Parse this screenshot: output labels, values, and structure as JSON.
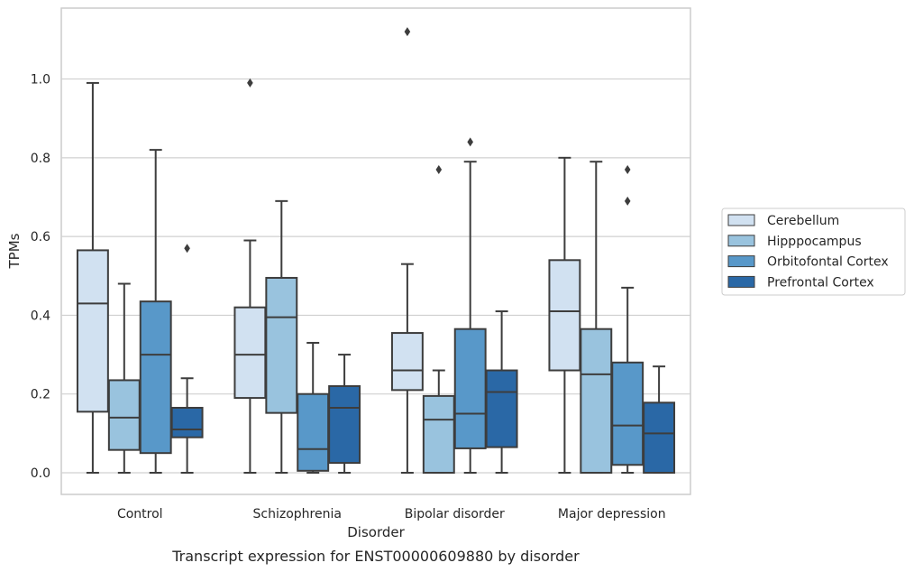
{
  "chart_data": {
    "type": "box",
    "caption": "Transcript expression for ENST00000609880 by disorder",
    "xlabel": "Disorder",
    "ylabel": "TPMs",
    "ylim": [
      -0.055,
      1.18
    ],
    "yticks": [
      0.0,
      0.2,
      0.4,
      0.6,
      0.8,
      1.0
    ],
    "ytick_labels": [
      "0.0",
      "0.2",
      "0.4",
      "0.6",
      "0.8",
      "1.0"
    ],
    "grid": "horizontal",
    "legend_position": "right",
    "categories": [
      "Control",
      "Schizophrenia",
      "Bipolar disorder",
      "Major depression"
    ],
    "series": [
      {
        "name": "Cerebellum",
        "color": "#d1e1f1",
        "boxes": [
          {
            "whisker_low": 0.0,
            "q1": 0.155,
            "median": 0.43,
            "q3": 0.565,
            "whisker_high": 0.99,
            "outliers": []
          },
          {
            "whisker_low": 0.0,
            "q1": 0.19,
            "median": 0.3,
            "q3": 0.42,
            "whisker_high": 0.59,
            "outliers": [
              0.99
            ]
          },
          {
            "whisker_low": 0.0,
            "q1": 0.21,
            "median": 0.26,
            "q3": 0.355,
            "whisker_high": 0.53,
            "outliers": [
              1.12
            ]
          },
          {
            "whisker_low": 0.0,
            "q1": 0.26,
            "median": 0.41,
            "q3": 0.54,
            "whisker_high": 0.8,
            "outliers": []
          }
        ]
      },
      {
        "name": "Hipppocampus",
        "color": "#99c3de",
        "boxes": [
          {
            "whisker_low": 0.0,
            "q1": 0.058,
            "median": 0.14,
            "q3": 0.235,
            "whisker_high": 0.48,
            "outliers": []
          },
          {
            "whisker_low": 0.0,
            "q1": 0.152,
            "median": 0.395,
            "q3": 0.495,
            "whisker_high": 0.69,
            "outliers": []
          },
          {
            "whisker_low": 0.0,
            "q1": 0.0,
            "median": 0.135,
            "q3": 0.195,
            "whisker_high": 0.26,
            "outliers": [
              0.77
            ]
          },
          {
            "whisker_low": 0.0,
            "q1": 0.0,
            "median": 0.25,
            "q3": 0.365,
            "whisker_high": 0.79,
            "outliers": []
          }
        ]
      },
      {
        "name": "Orbitofontal Cortex",
        "color": "#5898c9",
        "boxes": [
          {
            "whisker_low": 0.0,
            "q1": 0.05,
            "median": 0.3,
            "q3": 0.435,
            "whisker_high": 0.82,
            "outliers": []
          },
          {
            "whisker_low": 0.0,
            "q1": 0.005,
            "median": 0.06,
            "q3": 0.2,
            "whisker_high": 0.33,
            "outliers": []
          },
          {
            "whisker_low": 0.0,
            "q1": 0.062,
            "median": 0.15,
            "q3": 0.365,
            "whisker_high": 0.79,
            "outliers": [
              0.84
            ]
          },
          {
            "whisker_low": 0.0,
            "q1": 0.02,
            "median": 0.12,
            "q3": 0.28,
            "whisker_high": 0.47,
            "outliers": [
              0.69,
              0.77
            ]
          }
        ]
      },
      {
        "name": "Prefrontal Cortex",
        "color": "#2a68a6",
        "boxes": [
          {
            "whisker_low": 0.0,
            "q1": 0.09,
            "median": 0.11,
            "q3": 0.165,
            "whisker_high": 0.24,
            "outliers": [
              0.57
            ]
          },
          {
            "whisker_low": 0.0,
            "q1": 0.025,
            "median": 0.165,
            "q3": 0.22,
            "whisker_high": 0.3,
            "outliers": []
          },
          {
            "whisker_low": 0.0,
            "q1": 0.065,
            "median": 0.205,
            "q3": 0.26,
            "whisker_high": 0.41,
            "outliers": []
          },
          {
            "whisker_low": 0.0,
            "q1": 0.0,
            "median": 0.1,
            "q3": 0.178,
            "whisker_high": 0.27,
            "outliers": []
          }
        ]
      }
    ]
  }
}
